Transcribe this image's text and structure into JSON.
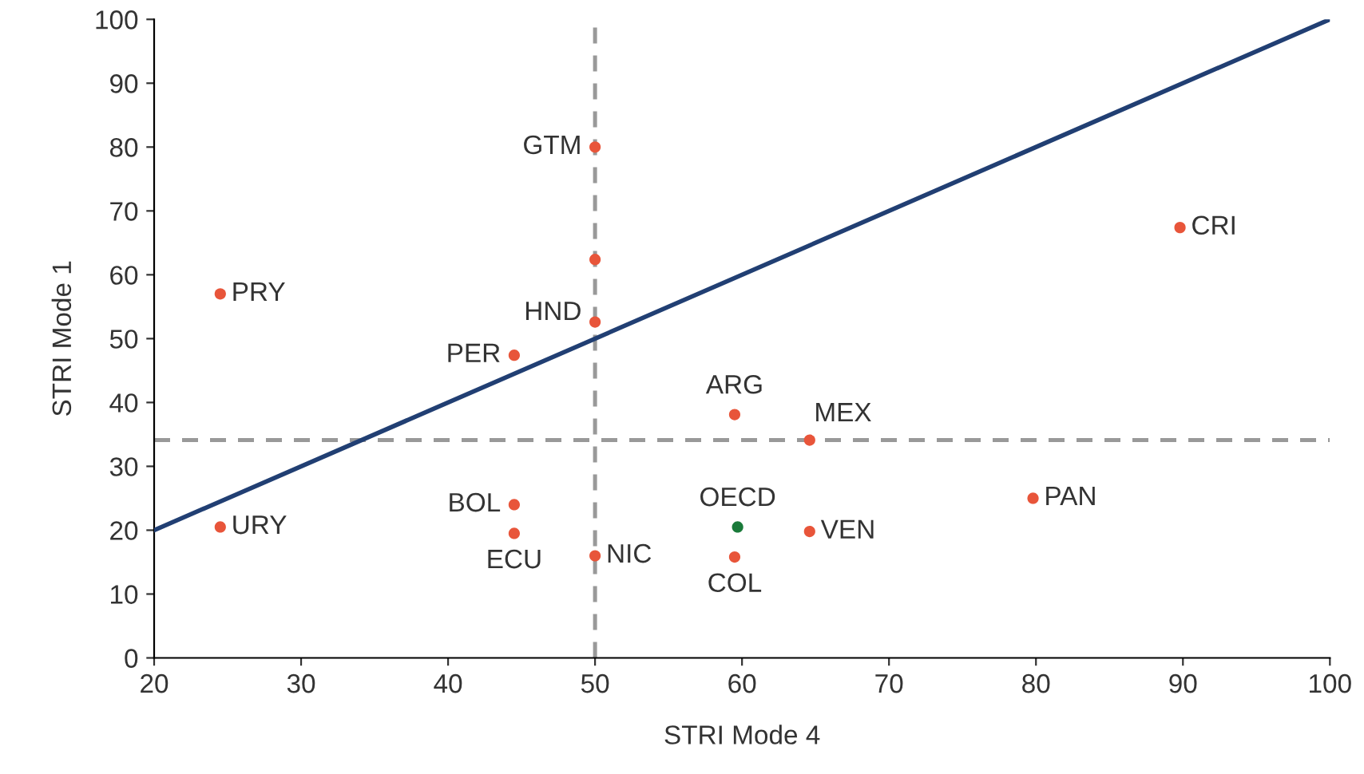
{
  "chart_data": {
    "type": "scatter",
    "xlabel": "STRI Mode 4",
    "ylabel": "STRI Mode 1",
    "xlim": [
      20,
      100
    ],
    "ylim": [
      0,
      100
    ],
    "xticks": [
      20,
      30,
      40,
      50,
      60,
      70,
      80,
      90,
      100
    ],
    "yticks": [
      0,
      10,
      20,
      30,
      40,
      50,
      60,
      70,
      80,
      90,
      100
    ],
    "grid": false,
    "legend": false,
    "marker": "circle",
    "series": [
      {
        "x": [
          24.5,
          24.5,
          50,
          50,
          50,
          44.5,
          44.5,
          44.5,
          50,
          59.5,
          64.6,
          59.7,
          64.6,
          59.5,
          79.8,
          89.8
        ],
        "values": [
          57,
          20.5,
          80,
          62.4,
          52.6,
          47.4,
          24,
          19.5,
          16,
          38.1,
          34.1,
          20.5,
          19.8,
          15.8,
          25,
          67.4
        ],
        "colors": [
          "#e8553a",
          "#e8553a",
          "#e8553a",
          "#e8553a",
          "#e8553a",
          "#e8553a",
          "#e8553a",
          "#e8553a",
          "#e8553a",
          "#e8553a",
          "#e8553a",
          "#1a7a3a",
          "#e8553a",
          "#e8553a",
          "#e8553a",
          "#e8553a"
        ]
      },
      {
        "type": "line",
        "x": [
          20,
          100
        ],
        "values": [
          20,
          100
        ],
        "color": "#213f73",
        "line_style": "solid",
        "marker": "none"
      }
    ],
    "ref_lines": [
      {
        "axis": "x",
        "value": 50,
        "color": "#999999",
        "line_style": "dashed"
      },
      {
        "axis": "y",
        "value": 34.1,
        "color": "#999999",
        "line_style": "dashed"
      }
    ],
    "annotations": [
      {
        "text": "PRY",
        "x": 24.5,
        "y": 57
      },
      {
        "text": "URY",
        "x": 24.5,
        "y": 20.5
      },
      {
        "text": "GTM",
        "x": 50,
        "y": 80
      },
      {
        "text": "HND",
        "x": 50,
        "y": 52.6
      },
      {
        "text": "PER",
        "x": 44.5,
        "y": 47.4
      },
      {
        "text": "BOL",
        "x": 44.5,
        "y": 24
      },
      {
        "text": "ECU",
        "x": 44.5,
        "y": 19.5
      },
      {
        "text": "NIC",
        "x": 50,
        "y": 16
      },
      {
        "text": "ARG",
        "x": 59.5,
        "y": 38.1
      },
      {
        "text": "MEX",
        "x": 64.6,
        "y": 34.1
      },
      {
        "text": "OECD",
        "x": 59.7,
        "y": 20.5
      },
      {
        "text": "VEN",
        "x": 64.6,
        "y": 19.8
      },
      {
        "text": "COL",
        "x": 59.5,
        "y": 15.8
      },
      {
        "text": "PAN",
        "x": 79.8,
        "y": 25
      },
      {
        "text": "CRI",
        "x": 89.8,
        "y": 67.4
      }
    ]
  }
}
